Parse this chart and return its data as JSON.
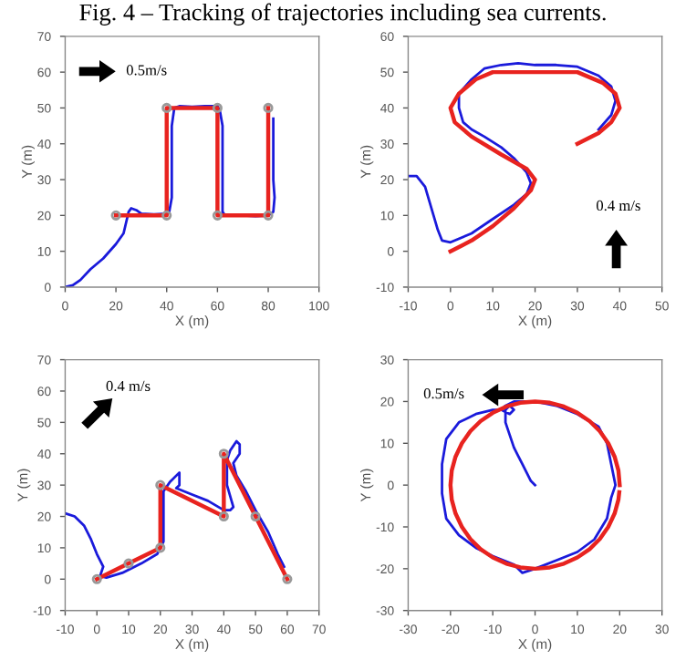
{
  "chart_data": [
    {
      "type": "line",
      "title": "Fig. 4 – Tracking of trajectories including sea currents.",
      "xlabel": "X (m)",
      "ylabel": "Y (m)",
      "xlim": [
        0,
        100
      ],
      "xticks": [
        0,
        20,
        40,
        60,
        80,
        100
      ],
      "ylim": [
        0,
        70
      ],
      "yticks": [
        0,
        10,
        20,
        30,
        40,
        50,
        60,
        70
      ],
      "annotations": [
        "0.5m/s"
      ],
      "series": [
        {
          "color": "#e8231f",
          "marker": "circle",
          "x": [
            20,
            40,
            40,
            60,
            60,
            80,
            80
          ],
          "values": [
            20,
            20,
            50,
            50,
            20,
            20,
            50
          ]
        },
        {
          "color": "#1a1adb",
          "marker": "none",
          "x": [
            0,
            3,
            6,
            10,
            15,
            20,
            23,
            24,
            25,
            26,
            28,
            30,
            35,
            40,
            41,
            42,
            42,
            42,
            43,
            45,
            50,
            55,
            60,
            61,
            62,
            62,
            62,
            62,
            63,
            70,
            75,
            80,
            82,
            82.5,
            82,
            82,
            82
          ],
          "values": [
            0,
            0.5,
            2,
            5,
            8,
            12,
            15,
            18,
            21,
            22,
            21.5,
            20.5,
            20.3,
            20.5,
            21,
            25,
            35,
            45,
            50,
            50.5,
            50.3,
            50.5,
            50.5,
            49,
            45,
            35,
            25,
            21,
            20,
            20,
            19.8,
            20,
            21,
            25,
            30,
            40,
            47
          ]
        }
      ]
    },
    {
      "type": "line",
      "xlabel": "X (m)",
      "ylabel": "Y (m)",
      "xlim": [
        -10,
        50
      ],
      "xticks": [
        -10,
        0,
        10,
        20,
        30,
        40,
        50
      ],
      "ylim": [
        -10,
        60
      ],
      "yticks": [
        -10,
        0,
        10,
        20,
        30,
        40,
        50,
        60
      ],
      "annotations": [
        "0.4 m/s"
      ],
      "series": [
        {
          "color": "#e8231f",
          "marker": "none",
          "x": [
            0,
            5,
            10,
            15,
            19,
            20,
            18,
            12,
            5,
            1,
            0,
            2,
            6,
            10,
            20,
            30,
            36,
            39,
            40,
            38,
            35,
            30
          ],
          "values": [
            0,
            3,
            7,
            12,
            17,
            20,
            23,
            27,
            32,
            36,
            40,
            44,
            48,
            50,
            50,
            50,
            47,
            44,
            40,
            36,
            33,
            30
          ]
        },
        {
          "color": "#1a1adb",
          "marker": "none",
          "x": [
            -10,
            -8,
            -6,
            -5,
            -4,
            -3,
            -2,
            0,
            5,
            10,
            15,
            18,
            19,
            18,
            15,
            12,
            8,
            5,
            3,
            2,
            2,
            5,
            8,
            12,
            16,
            20,
            25,
            30,
            35,
            38,
            39,
            38,
            35
          ],
          "values": [
            21,
            21,
            18,
            14,
            10,
            6,
            3,
            2.5,
            5,
            9,
            13,
            16,
            19,
            22,
            26,
            29,
            32,
            34,
            36,
            40,
            44,
            48,
            51,
            52,
            52.5,
            52,
            52,
            51.5,
            49,
            46,
            42,
            38,
            34
          ]
        }
      ]
    },
    {
      "type": "line",
      "xlabel": "X (m)",
      "ylabel": "Y (m)",
      "xlim": [
        -10,
        70
      ],
      "xticks": [
        -10,
        0,
        10,
        20,
        30,
        40,
        50,
        60,
        70
      ],
      "ylim": [
        -10,
        70
      ],
      "yticks": [
        -10,
        0,
        10,
        20,
        30,
        40,
        50,
        60,
        70
      ],
      "annotations": [
        "0.4 m/s"
      ],
      "series": [
        {
          "color": "#e8231f",
          "marker": "circle",
          "x": [
            0,
            10,
            20,
            20,
            40,
            40,
            50,
            60
          ],
          "values": [
            0,
            5,
            10,
            30,
            20,
            40,
            20,
            0
          ]
        },
        {
          "color": "#1a1adb",
          "marker": "none",
          "x": [
            -10,
            -7,
            -4,
            -2,
            0,
            2,
            1,
            3,
            8,
            14,
            19,
            21,
            21,
            21,
            23,
            26,
            26,
            25,
            30,
            35,
            40,
            42,
            43,
            41,
            41,
            42,
            44,
            45,
            45,
            43,
            44,
            47,
            50,
            54,
            57,
            59
          ],
          "values": [
            21,
            20,
            17,
            13,
            8,
            4,
            1,
            0.5,
            2,
            5,
            8,
            12,
            20,
            28,
            31,
            34,
            30,
            29,
            27,
            25,
            22,
            22,
            23,
            30,
            38,
            41,
            44,
            43,
            40,
            37,
            33,
            28,
            22,
            15,
            8,
            4
          ]
        }
      ]
    },
    {
      "type": "line",
      "xlabel": "X (m)",
      "ylabel": "Y (m)",
      "xlim": [
        -30,
        30
      ],
      "xticks": [
        -30,
        -20,
        -10,
        0,
        10,
        20,
        30
      ],
      "ylim": [
        -30,
        30
      ],
      "yticks": [
        -30,
        -20,
        -10,
        0,
        10,
        20,
        30
      ],
      "annotations": [
        "0.5m/s"
      ],
      "series": [
        {
          "color": "#e8231f",
          "marker": "none",
          "x": [
            20,
            19.7,
            18.8,
            17.3,
            15.3,
            12.9,
            10,
            6.8,
            3.5,
            0,
            -3.5,
            -6.8,
            -10,
            -12.9,
            -15.3,
            -17.3,
            -18.8,
            -19.7,
            -20,
            -19.7,
            -18.8,
            -17.3,
            -15.3,
            -12.9,
            -10,
            -6.8,
            -3.5,
            0,
            3.5,
            6.8,
            10,
            12.9,
            15.3,
            17.3,
            18.8,
            19.7,
            19.9
          ],
          "values": [
            0,
            3.5,
            6.8,
            10,
            12.9,
            15.3,
            17.3,
            18.8,
            19.7,
            20,
            19.7,
            18.8,
            17.3,
            15.3,
            12.9,
            10,
            6.8,
            3.5,
            0,
            -3.5,
            -6.8,
            -10,
            -12.9,
            -15.3,
            -17.3,
            -18.8,
            -19.7,
            -20,
            -19.7,
            -18.8,
            -17.3,
            -15.3,
            -12.9,
            -10,
            -6.8,
            -3.5,
            -1.7
          ]
        },
        {
          "color": "#1a1adb",
          "marker": "none",
          "x": [
            0,
            -1,
            -2,
            -3,
            -4,
            -5,
            -6,
            -7,
            -7,
            -6,
            -5,
            -6,
            -8,
            -10,
            -14,
            -18,
            -21,
            -22,
            -22,
            -21,
            -18,
            -14,
            -10,
            -5,
            -3,
            0,
            5,
            10,
            14,
            17,
            18,
            19,
            18,
            17,
            15,
            10,
            5,
            0,
            -5,
            -7
          ],
          "values": [
            0,
            1,
            3,
            5,
            7,
            9,
            12,
            15,
            18,
            19,
            18,
            17,
            18,
            18,
            17,
            15,
            11,
            5,
            -2,
            -8,
            -12,
            -15,
            -17,
            -19,
            -21,
            -20,
            -18,
            -16,
            -13,
            -8,
            -3,
            0,
            5,
            10,
            14,
            17,
            19,
            20,
            20,
            19
          ]
        }
      ]
    }
  ]
}
